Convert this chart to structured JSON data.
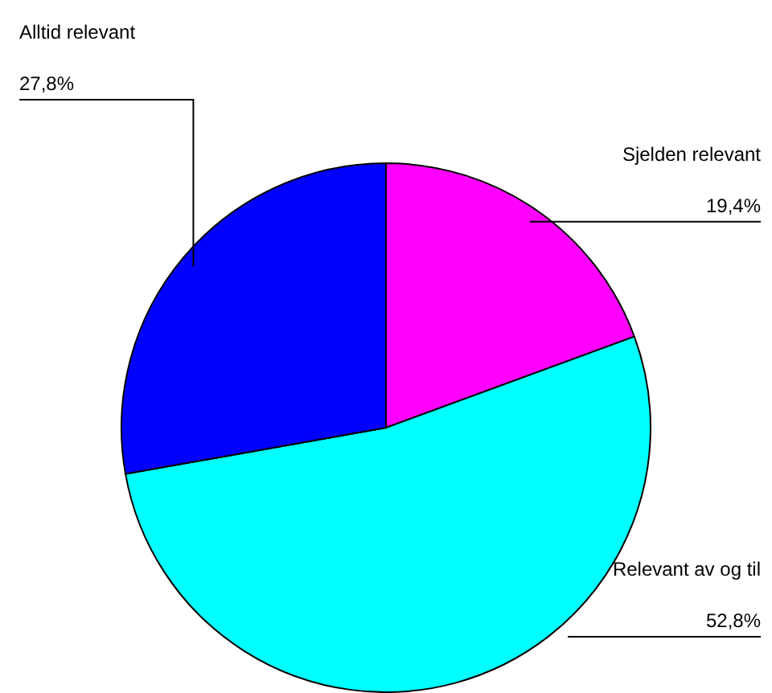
{
  "chart_data": {
    "type": "pie",
    "categories": [
      "Sjelden relevant",
      "Relevant av og til",
      "Alltid relevant"
    ],
    "values": [
      19.4,
      52.8,
      27.8
    ],
    "value_labels": [
      "19,4%",
      "52,8%",
      "27,8%"
    ],
    "colors": [
      "#ff00ff",
      "#00ffff",
      "#0000ff"
    ],
    "legend": false
  }
}
